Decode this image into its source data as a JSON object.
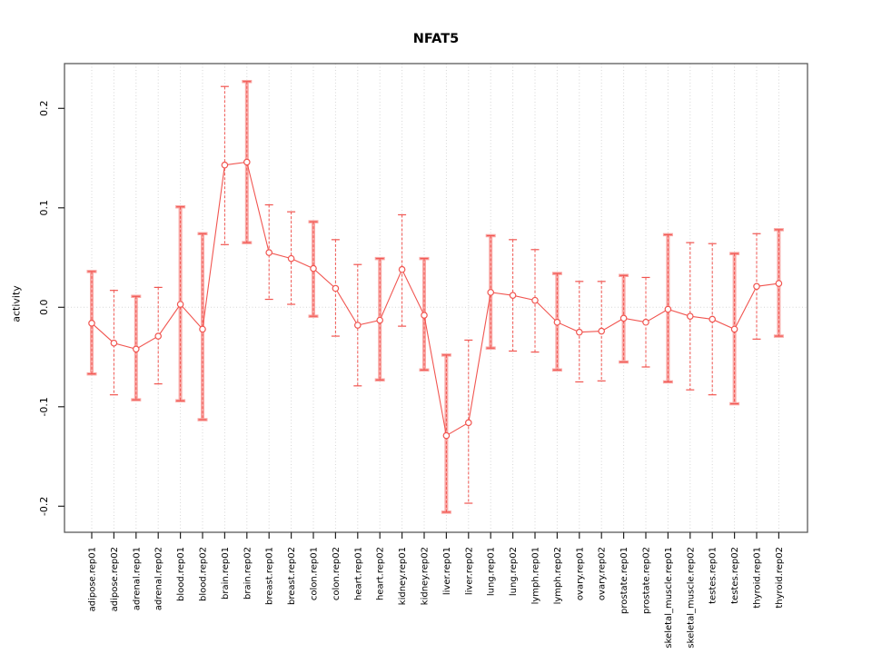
{
  "title": "NFAT5",
  "colors": {
    "point_line_red": "#F15550",
    "thick_bar_pink": "#F9A8A5",
    "grid_gray": "#D6D6D6",
    "axis_gray": "#5A5A5A",
    "tick_black": "#222222",
    "text_black": "#000000",
    "background": "#FFFFFF"
  },
  "chart_data": {
    "type": "scatter",
    "title": "NFAT5",
    "xlabel": "",
    "ylabel": "activity",
    "ylim": [
      -0.226,
      0.245
    ],
    "ytick_values": [
      -0.2,
      -0.1,
      0.0,
      0.1,
      0.2
    ],
    "ytick_labels": [
      "-0.2",
      "-0.1",
      "0.0",
      "0.1",
      "0.2"
    ],
    "grid": "vertical dotted line per category; horizontal dotted line at y=0",
    "legend": "none",
    "marker": "open-circle",
    "line_between_points": true,
    "error_bars": true,
    "categories": [
      "adipose.rep01",
      "adipose.rep02",
      "adrenal.rep01",
      "adrenal.rep02",
      "blood.rep01",
      "blood.rep02",
      "brain.rep01",
      "brain.rep02",
      "breast.rep01",
      "breast.rep02",
      "colon.rep01",
      "colon.rep02",
      "heart.rep01",
      "heart.rep02",
      "kidney.rep01",
      "kidney.rep02",
      "liver.rep01",
      "liver.rep02",
      "lung.rep01",
      "lung.rep02",
      "lymph.rep01",
      "lymph.rep02",
      "ovary.rep01",
      "ovary.rep02",
      "prostate.rep01",
      "prostate.rep02",
      "skeletal_muscle.rep01",
      "skeletal_muscle.rep02",
      "testes.rep01",
      "testes.rep02",
      "thyroid.rep01",
      "thyroid.rep02"
    ],
    "series": [
      {
        "name": "activity",
        "values": [
          -0.016,
          -0.036,
          -0.042,
          -0.029,
          0.003,
          -0.022,
          0.143,
          0.146,
          0.055,
          0.049,
          0.039,
          0.019,
          -0.018,
          -0.013,
          0.038,
          -0.008,
          -0.129,
          -0.116,
          0.015,
          0.012,
          0.007,
          -0.015,
          -0.025,
          -0.024,
          -0.011,
          -0.015,
          -0.002,
          -0.009,
          -0.012,
          -0.022,
          0.021,
          0.024
        ],
        "ci_high": [
          0.036,
          0.017,
          0.011,
          0.02,
          0.101,
          0.074,
          0.222,
          0.227,
          0.103,
          0.096,
          0.086,
          0.068,
          0.043,
          0.049,
          0.093,
          0.049,
          -0.048,
          -0.033,
          0.072,
          0.068,
          0.058,
          0.034,
          0.026,
          0.026,
          0.032,
          0.03,
          0.073,
          0.065,
          0.064,
          0.054,
          0.074,
          0.078
        ],
        "ci_low": [
          -0.067,
          -0.088,
          -0.093,
          -0.077,
          -0.094,
          -0.113,
          0.063,
          0.065,
          0.008,
          0.003,
          -0.009,
          -0.029,
          -0.079,
          -0.073,
          -0.019,
          -0.063,
          -0.206,
          -0.197,
          -0.041,
          -0.044,
          -0.045,
          -0.063,
          -0.075,
          -0.074,
          -0.055,
          -0.06,
          -0.075,
          -0.083,
          -0.088,
          -0.097,
          -0.032,
          -0.029
        ],
        "bar_style": [
          "thick",
          "thin",
          "thick",
          "thin",
          "thick",
          "thick",
          "thin",
          "thick",
          "thin",
          "thin",
          "thick",
          "thin",
          "thin",
          "thick",
          "thin",
          "thick",
          "thick",
          "thin",
          "thick",
          "thin",
          "thin",
          "thick",
          "thin",
          "thin",
          "thick",
          "thin",
          "thick",
          "thin",
          "thin",
          "thick",
          "thin",
          "thick"
        ]
      }
    ]
  }
}
